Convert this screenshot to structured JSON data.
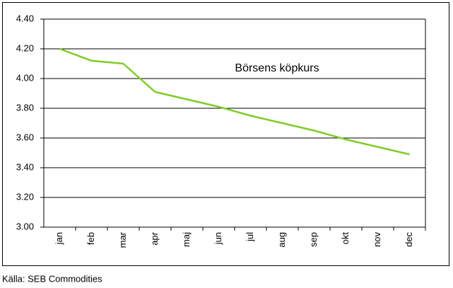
{
  "chart_data": {
    "type": "line",
    "annotation": "Börsens köpkurs",
    "source": "Källa: SEB Commodities",
    "categories": [
      "jan",
      "feb",
      "mar",
      "apr",
      "maj",
      "jun",
      "jul",
      "aug",
      "sep",
      "okt",
      "nov",
      "dec"
    ],
    "values": [
      4.2,
      4.12,
      4.1,
      3.91,
      3.86,
      3.81,
      3.75,
      3.7,
      3.65,
      3.59,
      3.54,
      3.49
    ],
    "color": "#80cc28",
    "ylim": [
      3.0,
      4.4
    ],
    "yticks": [
      {
        "value": 3.0,
        "label": "3.00"
      },
      {
        "value": 3.2,
        "label": "3.20"
      },
      {
        "value": 3.4,
        "label": "3.40"
      },
      {
        "value": 3.6,
        "label": "3.60"
      },
      {
        "value": 3.8,
        "label": "3.80"
      },
      {
        "value": 4.0,
        "label": "4.00"
      },
      {
        "value": 4.2,
        "label": "4.20"
      },
      {
        "value": 4.4,
        "label": "4.40"
      }
    ],
    "grid": true
  }
}
